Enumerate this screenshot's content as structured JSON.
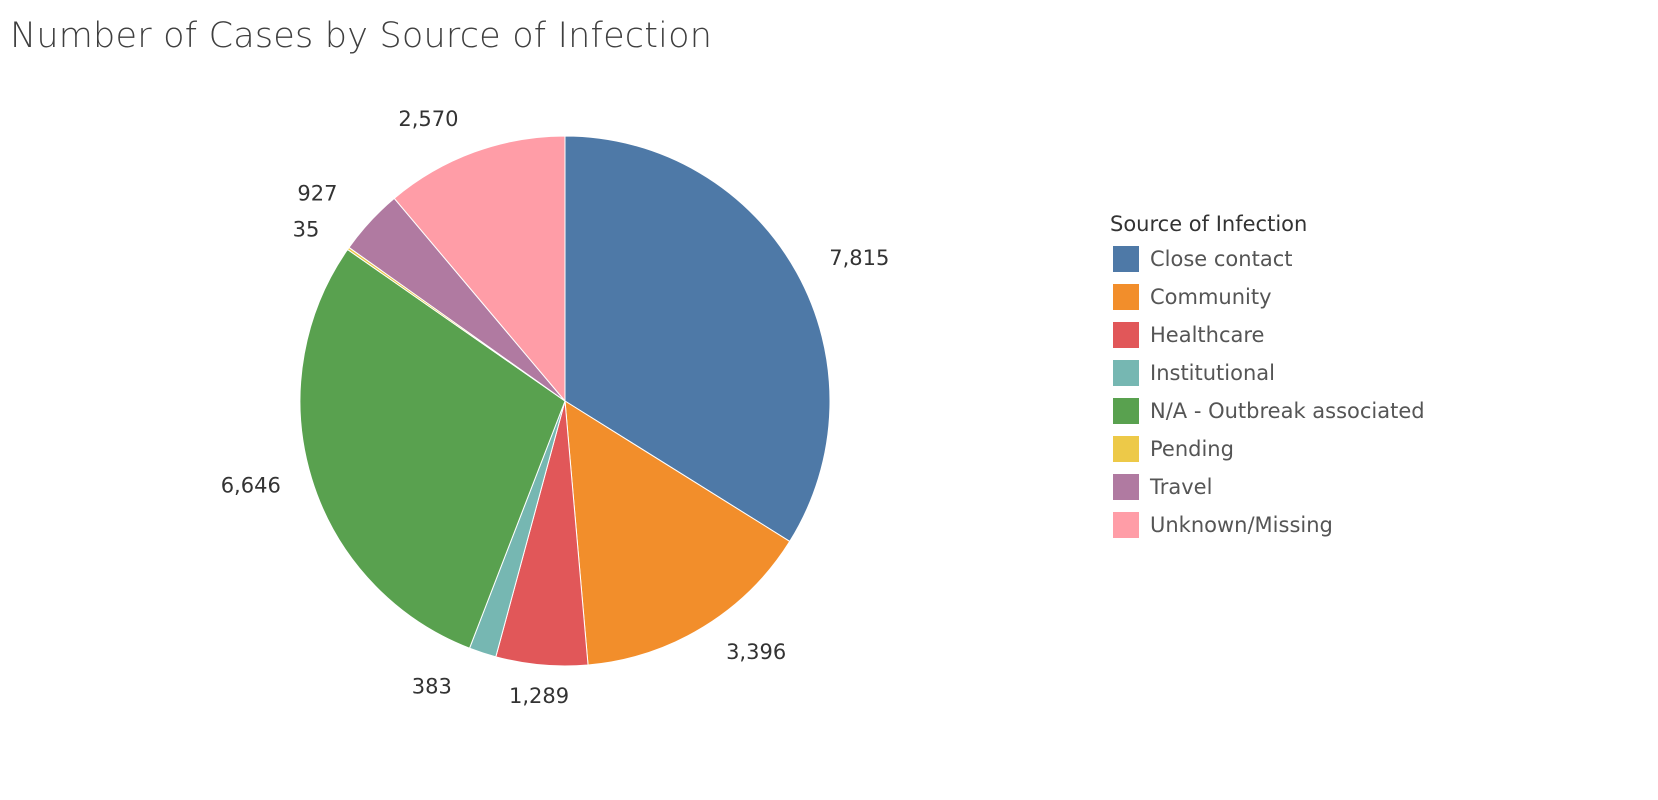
{
  "chart_data": {
    "type": "pie",
    "title": "Number of Cases by Source of Infection",
    "legend_title": "Source of Infection",
    "legend_position": "right",
    "slices": [
      {
        "label": "Close contact",
        "value": 7815,
        "display": "7,815",
        "color": "#4e79a7"
      },
      {
        "label": "Community",
        "value": 3396,
        "display": "3,396",
        "color": "#f28e2b"
      },
      {
        "label": "Healthcare",
        "value": 1289,
        "display": "1,289",
        "color": "#e15759"
      },
      {
        "label": "Institutional",
        "value": 383,
        "display": "383",
        "color": "#76b7b2"
      },
      {
        "label": "N/A - Outbreak associated",
        "value": 6646,
        "display": "6,646",
        "color": "#59a14f"
      },
      {
        "label": "Pending",
        "value": 35,
        "display": "35",
        "color": "#edc948"
      },
      {
        "label": "Travel",
        "value": 927,
        "display": "927",
        "color": "#b07aa1"
      },
      {
        "label": "Unknown/Missing",
        "value": 2570,
        "display": "2,570",
        "color": "#ff9da7"
      }
    ]
  }
}
